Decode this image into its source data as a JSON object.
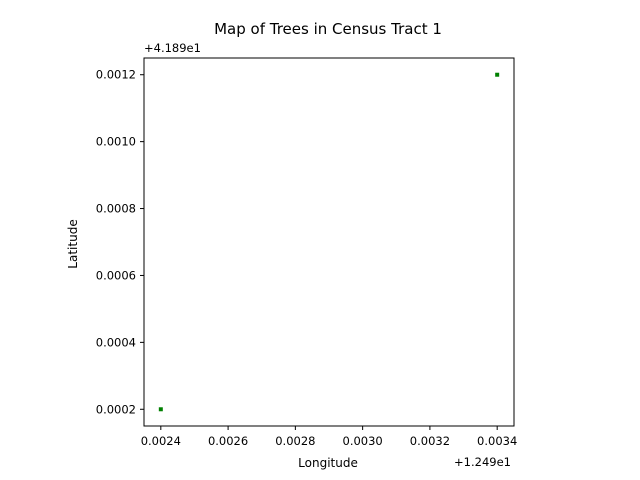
{
  "chart_data": {
    "type": "scatter",
    "title": "Map of Trees in Census Tract 1",
    "xlabel": "Longitude",
    "ylabel": "Latitude",
    "x_offset_label": "+1.249e1",
    "y_offset_label": "+4.189e1",
    "xlim": [
      0.00235,
      0.00345
    ],
    "ylim": [
      0.00015,
      0.00125
    ],
    "x_ticks": [
      {
        "value": 0.0024,
        "label": "0.0024"
      },
      {
        "value": 0.0026,
        "label": "0.0026"
      },
      {
        "value": 0.0028,
        "label": "0.0028"
      },
      {
        "value": 0.003,
        "label": "0.0030"
      },
      {
        "value": 0.0032,
        "label": "0.0032"
      },
      {
        "value": 0.0034,
        "label": "0.0034"
      }
    ],
    "y_ticks": [
      {
        "value": 0.0002,
        "label": "0.0002"
      },
      {
        "value": 0.0004,
        "label": "0.0004"
      },
      {
        "value": 0.0006,
        "label": "0.0006"
      },
      {
        "value": 0.0008,
        "label": "0.0008"
      },
      {
        "value": 0.001,
        "label": "0.0010"
      },
      {
        "value": 0.0012,
        "label": "0.0012"
      }
    ],
    "grid": false,
    "marker_color": "#008000",
    "points": [
      {
        "x": 0.0024,
        "y": 0.0002
      },
      {
        "x": 0.0034,
        "y": 0.0012
      }
    ]
  }
}
